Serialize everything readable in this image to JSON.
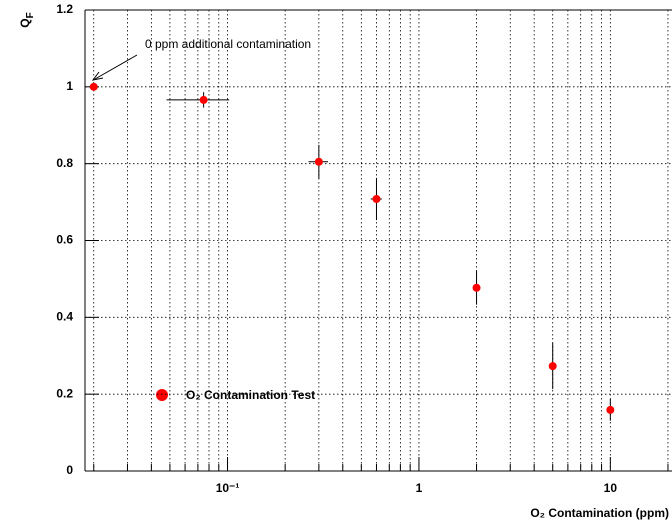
{
  "chart_data": {
    "type": "scatter",
    "annotation": "0 ppm additional contamination",
    "xlabel": "O₂ Contamination (ppm)",
    "ylabel": [
      "Q",
      "F"
    ],
    "xlog": true,
    "grid": true,
    "xlim": [
      0.018,
      21
    ],
    "ylim": [
      0,
      1.2
    ],
    "xticks": [
      {
        "value": 0.1,
        "label": "10⁻¹"
      },
      1,
      10
    ],
    "xminorticks": [
      0.02,
      0.03,
      0.04,
      0.05,
      0.06,
      0.07,
      0.08,
      0.09,
      0.2,
      0.3,
      0.4,
      0.5,
      0.6,
      0.7,
      0.8,
      0.9,
      2,
      3,
      4,
      5,
      6,
      7,
      8,
      9,
      20
    ],
    "yticks": [
      0,
      0.2,
      0.4,
      0.6,
      0.8,
      1,
      1.2
    ],
    "x": [
      0.02,
      0.075,
      0.3,
      0.6,
      2,
      5,
      10
    ],
    "series": [
      {
        "name": "O₂ Contamination Test",
        "color": "#ff0000",
        "values": [
          1.0,
          0.966,
          0.805,
          0.708,
          0.477,
          0.273,
          0.159
        ],
        "yerr": [
          0,
          0.02,
          0.044,
          0.055,
          0.044,
          0.06,
          0.028
        ],
        "xerr": [
          0,
          0.027,
          0.035,
          0.04,
          0,
          0,
          0
        ]
      }
    ]
  }
}
